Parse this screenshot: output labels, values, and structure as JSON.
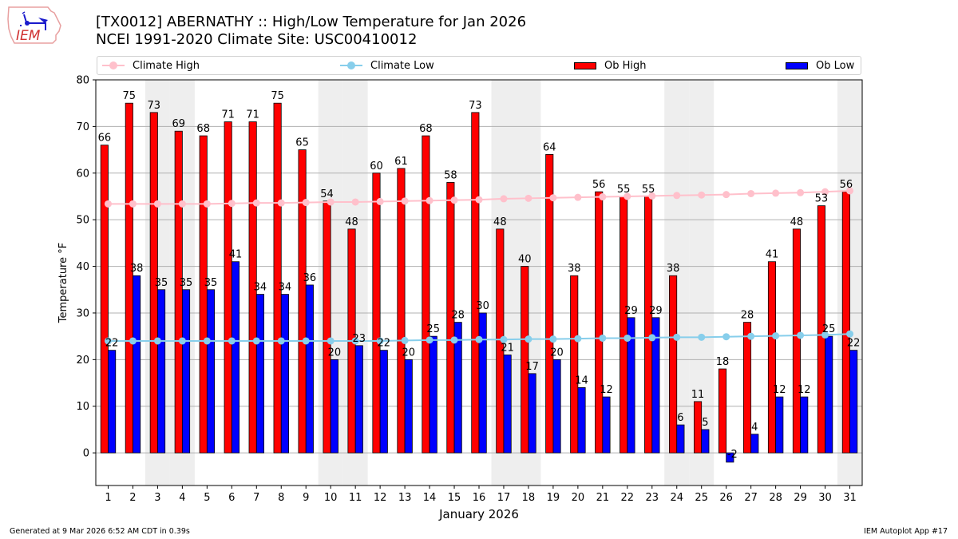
{
  "header": {
    "title_line1": "[TX0012] ABERNATHY :: High/Low Temperature for Jan 2026",
    "title_line2": "NCEI 1991-2020 Climate Site: USC00410012",
    "logo_text": "IEM"
  },
  "footer": {
    "generated": "Generated at 9 Mar 2026 6:52 AM CDT in 0.39s",
    "app": "IEM Autoplot App #17"
  },
  "legend": {
    "climate_high": "Climate High",
    "climate_low": "Climate Low",
    "ob_high": "Ob High",
    "ob_low": "Ob Low"
  },
  "colors": {
    "ob_high": "#ff0000",
    "ob_low": "#0000ff",
    "climate_high": "#ffc0cb",
    "climate_low": "#87ceeb",
    "weekend": "#eeeeee",
    "grid": "#b0b0b0"
  },
  "chart_data": {
    "type": "bar",
    "title": "[TX0012] ABERNATHY :: High/Low Temperature for Jan 2026",
    "subtitle": "NCEI 1991-2020 Climate Site: USC00410012",
    "xlabel": "January 2026",
    "ylabel": "Temperature °F",
    "ylim": [
      -7,
      80
    ],
    "yticks": [
      0,
      10,
      20,
      30,
      40,
      50,
      60,
      70,
      80
    ],
    "grid": true,
    "legend_position": "top",
    "categories": [
      "1",
      "2",
      "3",
      "4",
      "5",
      "6",
      "7",
      "8",
      "9",
      "10",
      "11",
      "12",
      "13",
      "14",
      "15",
      "16",
      "17",
      "18",
      "19",
      "20",
      "21",
      "22",
      "23",
      "24",
      "25",
      "26",
      "27",
      "28",
      "29",
      "30",
      "31"
    ],
    "weekend_days": [
      3,
      4,
      10,
      11,
      17,
      18,
      24,
      25,
      31
    ],
    "series": [
      {
        "name": "Ob High",
        "kind": "bar",
        "values": [
          66,
          75,
          73,
          69,
          68,
          71,
          71,
          75,
          65,
          54,
          48,
          60,
          61,
          68,
          58,
          73,
          48,
          40,
          64,
          38,
          56,
          55,
          55,
          38,
          11,
          18,
          28,
          41,
          48,
          53,
          56
        ]
      },
      {
        "name": "Ob Low",
        "kind": "bar",
        "values": [
          22,
          38,
          35,
          35,
          35,
          41,
          34,
          34,
          36,
          20,
          23,
          22,
          20,
          25,
          28,
          30,
          21,
          17,
          20,
          14,
          12,
          29,
          29,
          6,
          5,
          -2,
          4,
          12,
          12,
          25,
          22
        ]
      },
      {
        "name": "Climate High",
        "kind": "line",
        "values": [
          53.4,
          53.4,
          53.4,
          53.4,
          53.4,
          53.5,
          53.6,
          53.6,
          53.7,
          53.8,
          53.8,
          53.9,
          54.0,
          54.1,
          54.2,
          54.3,
          54.5,
          54.6,
          54.7,
          54.8,
          54.9,
          55.0,
          55.1,
          55.2,
          55.3,
          55.4,
          55.6,
          55.7,
          55.8,
          56.0,
          56.2
        ]
      },
      {
        "name": "Climate Low",
        "kind": "line",
        "values": [
          24.0,
          24.0,
          24.0,
          24.0,
          24.0,
          24.0,
          24.0,
          24.0,
          24.0,
          24.0,
          24.0,
          24.0,
          24.1,
          24.2,
          24.2,
          24.3,
          24.3,
          24.4,
          24.4,
          24.5,
          24.6,
          24.6,
          24.7,
          24.8,
          24.8,
          24.9,
          25.0,
          25.1,
          25.2,
          25.3,
          25.5
        ]
      }
    ]
  }
}
